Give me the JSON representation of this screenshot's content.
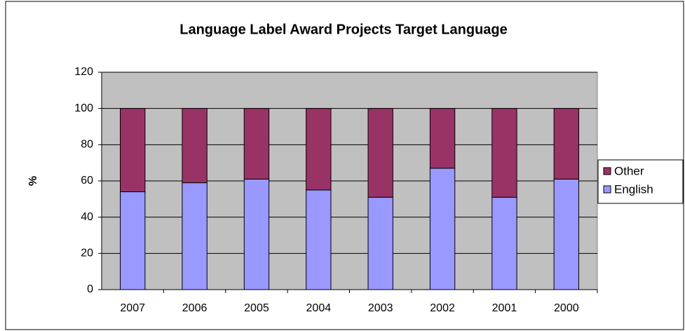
{
  "chart_data": {
    "type": "stacked_bar",
    "title": "Language Label Award Projects Target Language",
    "y_label": "%",
    "categories": [
      "2007",
      "2006",
      "2005",
      "2004",
      "2003",
      "2002",
      "2001",
      "2000"
    ],
    "series": [
      {
        "name": "English",
        "color": "#9999ff",
        "values": [
          54,
          59,
          61,
          55,
          51,
          67,
          51,
          61
        ]
      },
      {
        "name": "Other",
        "color": "#993366",
        "values": [
          46,
          41,
          39,
          45,
          49,
          33,
          49,
          39
        ]
      }
    ],
    "ylim": [
      0,
      120
    ],
    "yticks": [
      0,
      20,
      40,
      60,
      80,
      100,
      120
    ],
    "grid": true,
    "legend": "right"
  }
}
